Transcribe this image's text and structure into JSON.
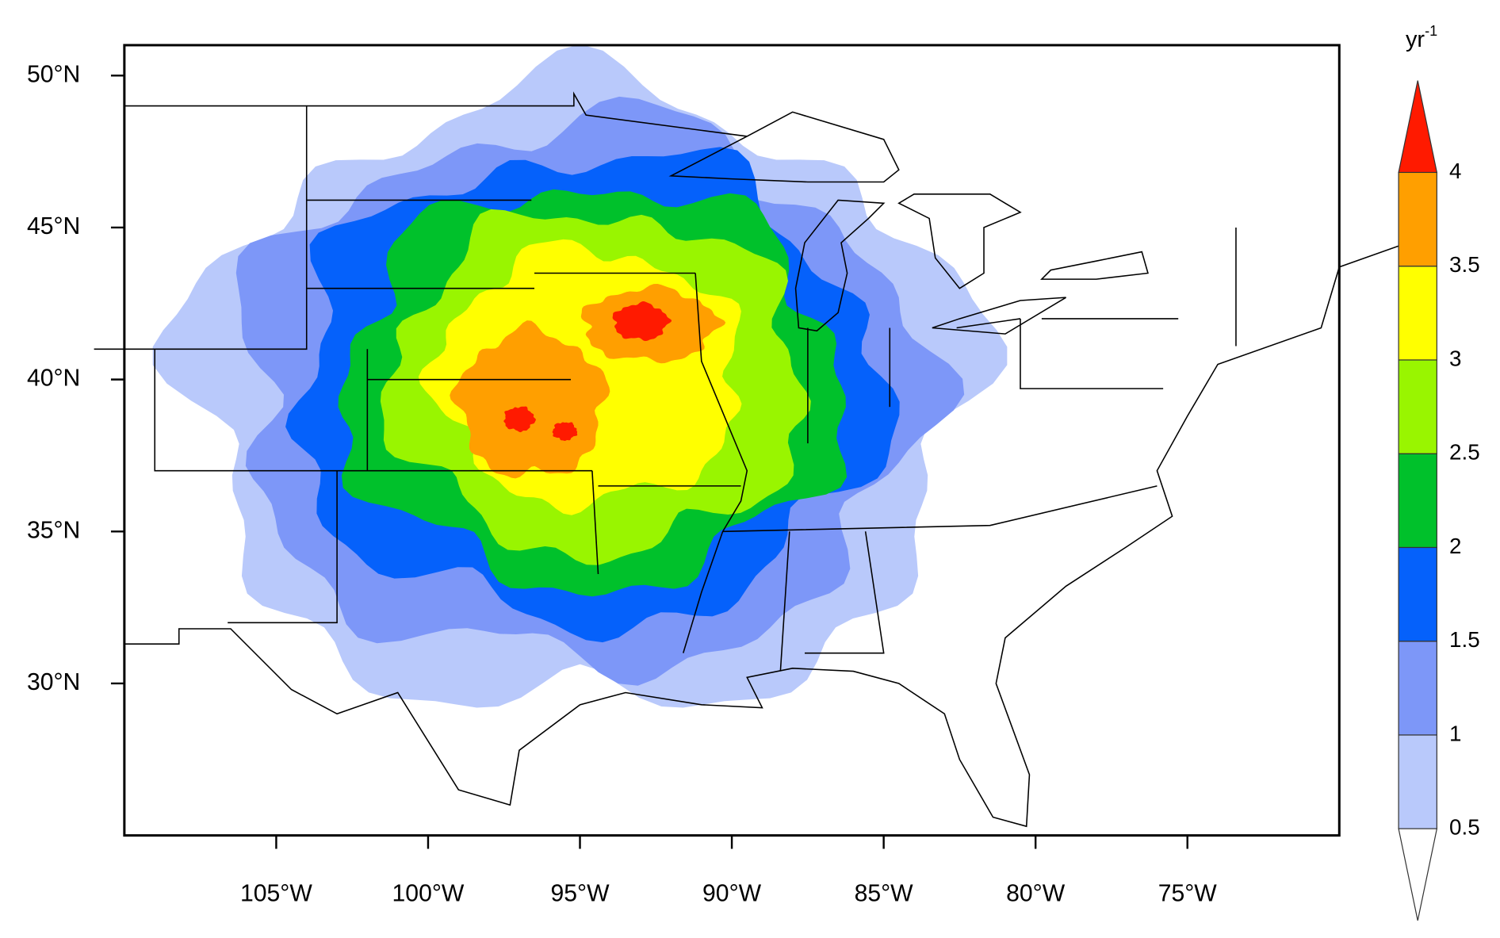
{
  "chart_data": {
    "type": "contour_map",
    "colorbar_label": "yr",
    "colorbar_label_exponent": "-1",
    "xlim": [
      -110,
      -70
    ],
    "ylim": [
      25,
      51
    ],
    "xticks": [
      {
        "value": -105,
        "label": "105°W"
      },
      {
        "value": -100,
        "label": "100°W"
      },
      {
        "value": -95,
        "label": "95°W"
      },
      {
        "value": -90,
        "label": "90°W"
      },
      {
        "value": -85,
        "label": "85°W"
      },
      {
        "value": -80,
        "label": "80°W"
      },
      {
        "value": -75,
        "label": "75°W"
      }
    ],
    "yticks": [
      {
        "value": 30,
        "label": "30°N"
      },
      {
        "value": 35,
        "label": "35°N"
      },
      {
        "value": 40,
        "label": "40°N"
      },
      {
        "value": 45,
        "label": "45°N"
      },
      {
        "value": 50,
        "label": "50°N"
      }
    ],
    "levels": [
      0.5,
      1,
      1.5,
      2,
      2.5,
      3,
      3.5,
      4
    ],
    "colors": [
      "#ffffff",
      "#b9c9fb",
      "#7d97f8",
      "#0561fb",
      "#00c12b",
      "#99f500",
      "#ffff00",
      "#ff9f00",
      "#ff1a00"
    ]
  }
}
